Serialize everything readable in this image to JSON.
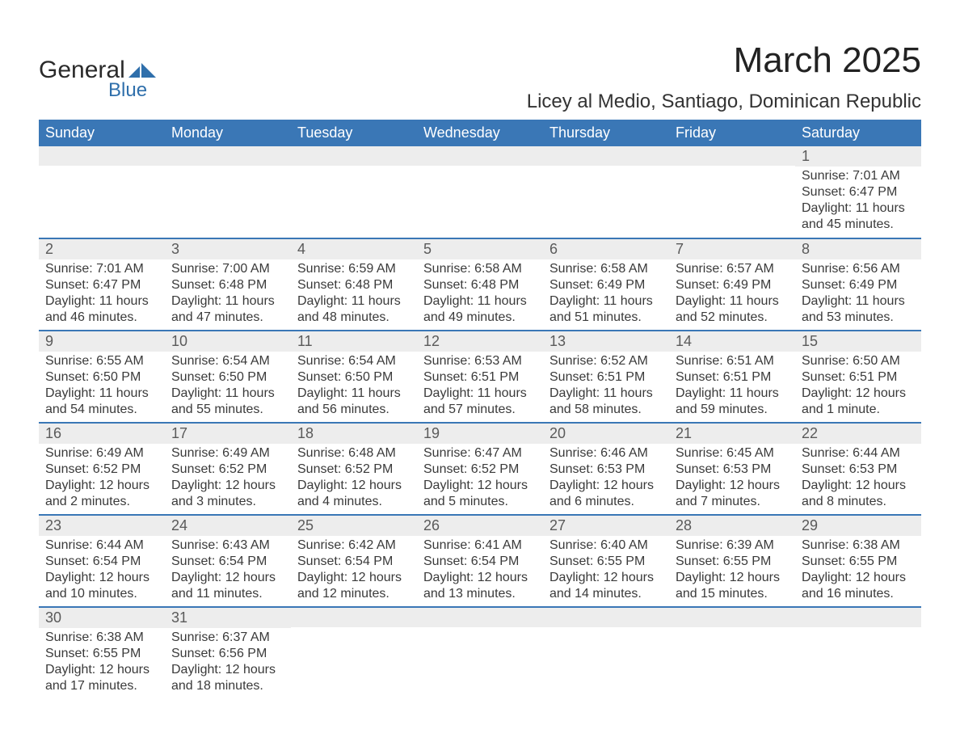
{
  "logo": {
    "text_general": "General",
    "text_blue": "Blue",
    "shape_color": "#2f6fab"
  },
  "title": "March 2025",
  "location": "Licey al Medio, Santiago, Dominican Republic",
  "colors": {
    "header_bg": "#3a77b6",
    "header_text": "#ffffff",
    "daynum_bg": "#ededed",
    "row_divider": "#3a77b6",
    "body_text": "#3a3a3a",
    "title_text": "#222222"
  },
  "typography": {
    "title_fontsize": 44,
    "location_fontsize": 24,
    "dayheader_fontsize": 18,
    "daynum_fontsize": 18,
    "cell_fontsize": 16
  },
  "day_headers": [
    "Sunday",
    "Monday",
    "Tuesday",
    "Wednesday",
    "Thursday",
    "Friday",
    "Saturday"
  ],
  "weeks": [
    [
      null,
      null,
      null,
      null,
      null,
      null,
      {
        "day": "1",
        "sunrise": "Sunrise: 7:01 AM",
        "sunset": "Sunset: 6:47 PM",
        "daylight": "Daylight: 11 hours and 45 minutes."
      }
    ],
    [
      {
        "day": "2",
        "sunrise": "Sunrise: 7:01 AM",
        "sunset": "Sunset: 6:47 PM",
        "daylight": "Daylight: 11 hours and 46 minutes."
      },
      {
        "day": "3",
        "sunrise": "Sunrise: 7:00 AM",
        "sunset": "Sunset: 6:48 PM",
        "daylight": "Daylight: 11 hours and 47 minutes."
      },
      {
        "day": "4",
        "sunrise": "Sunrise: 6:59 AM",
        "sunset": "Sunset: 6:48 PM",
        "daylight": "Daylight: 11 hours and 48 minutes."
      },
      {
        "day": "5",
        "sunrise": "Sunrise: 6:58 AM",
        "sunset": "Sunset: 6:48 PM",
        "daylight": "Daylight: 11 hours and 49 minutes."
      },
      {
        "day": "6",
        "sunrise": "Sunrise: 6:58 AM",
        "sunset": "Sunset: 6:49 PM",
        "daylight": "Daylight: 11 hours and 51 minutes."
      },
      {
        "day": "7",
        "sunrise": "Sunrise: 6:57 AM",
        "sunset": "Sunset: 6:49 PM",
        "daylight": "Daylight: 11 hours and 52 minutes."
      },
      {
        "day": "8",
        "sunrise": "Sunrise: 6:56 AM",
        "sunset": "Sunset: 6:49 PM",
        "daylight": "Daylight: 11 hours and 53 minutes."
      }
    ],
    [
      {
        "day": "9",
        "sunrise": "Sunrise: 6:55 AM",
        "sunset": "Sunset: 6:50 PM",
        "daylight": "Daylight: 11 hours and 54 minutes."
      },
      {
        "day": "10",
        "sunrise": "Sunrise: 6:54 AM",
        "sunset": "Sunset: 6:50 PM",
        "daylight": "Daylight: 11 hours and 55 minutes."
      },
      {
        "day": "11",
        "sunrise": "Sunrise: 6:54 AM",
        "sunset": "Sunset: 6:50 PM",
        "daylight": "Daylight: 11 hours and 56 minutes."
      },
      {
        "day": "12",
        "sunrise": "Sunrise: 6:53 AM",
        "sunset": "Sunset: 6:51 PM",
        "daylight": "Daylight: 11 hours and 57 minutes."
      },
      {
        "day": "13",
        "sunrise": "Sunrise: 6:52 AM",
        "sunset": "Sunset: 6:51 PM",
        "daylight": "Daylight: 11 hours and 58 minutes."
      },
      {
        "day": "14",
        "sunrise": "Sunrise: 6:51 AM",
        "sunset": "Sunset: 6:51 PM",
        "daylight": "Daylight: 11 hours and 59 minutes."
      },
      {
        "day": "15",
        "sunrise": "Sunrise: 6:50 AM",
        "sunset": "Sunset: 6:51 PM",
        "daylight": "Daylight: 12 hours and 1 minute."
      }
    ],
    [
      {
        "day": "16",
        "sunrise": "Sunrise: 6:49 AM",
        "sunset": "Sunset: 6:52 PM",
        "daylight": "Daylight: 12 hours and 2 minutes."
      },
      {
        "day": "17",
        "sunrise": "Sunrise: 6:49 AM",
        "sunset": "Sunset: 6:52 PM",
        "daylight": "Daylight: 12 hours and 3 minutes."
      },
      {
        "day": "18",
        "sunrise": "Sunrise: 6:48 AM",
        "sunset": "Sunset: 6:52 PM",
        "daylight": "Daylight: 12 hours and 4 minutes."
      },
      {
        "day": "19",
        "sunrise": "Sunrise: 6:47 AM",
        "sunset": "Sunset: 6:52 PM",
        "daylight": "Daylight: 12 hours and 5 minutes."
      },
      {
        "day": "20",
        "sunrise": "Sunrise: 6:46 AM",
        "sunset": "Sunset: 6:53 PM",
        "daylight": "Daylight: 12 hours and 6 minutes."
      },
      {
        "day": "21",
        "sunrise": "Sunrise: 6:45 AM",
        "sunset": "Sunset: 6:53 PM",
        "daylight": "Daylight: 12 hours and 7 minutes."
      },
      {
        "day": "22",
        "sunrise": "Sunrise: 6:44 AM",
        "sunset": "Sunset: 6:53 PM",
        "daylight": "Daylight: 12 hours and 8 minutes."
      }
    ],
    [
      {
        "day": "23",
        "sunrise": "Sunrise: 6:44 AM",
        "sunset": "Sunset: 6:54 PM",
        "daylight": "Daylight: 12 hours and 10 minutes."
      },
      {
        "day": "24",
        "sunrise": "Sunrise: 6:43 AM",
        "sunset": "Sunset: 6:54 PM",
        "daylight": "Daylight: 12 hours and 11 minutes."
      },
      {
        "day": "25",
        "sunrise": "Sunrise: 6:42 AM",
        "sunset": "Sunset: 6:54 PM",
        "daylight": "Daylight: 12 hours and 12 minutes."
      },
      {
        "day": "26",
        "sunrise": "Sunrise: 6:41 AM",
        "sunset": "Sunset: 6:54 PM",
        "daylight": "Daylight: 12 hours and 13 minutes."
      },
      {
        "day": "27",
        "sunrise": "Sunrise: 6:40 AM",
        "sunset": "Sunset: 6:55 PM",
        "daylight": "Daylight: 12 hours and 14 minutes."
      },
      {
        "day": "28",
        "sunrise": "Sunrise: 6:39 AM",
        "sunset": "Sunset: 6:55 PM",
        "daylight": "Daylight: 12 hours and 15 minutes."
      },
      {
        "day": "29",
        "sunrise": "Sunrise: 6:38 AM",
        "sunset": "Sunset: 6:55 PM",
        "daylight": "Daylight: 12 hours and 16 minutes."
      }
    ],
    [
      {
        "day": "30",
        "sunrise": "Sunrise: 6:38 AM",
        "sunset": "Sunset: 6:55 PM",
        "daylight": "Daylight: 12 hours and 17 minutes."
      },
      {
        "day": "31",
        "sunrise": "Sunrise: 6:37 AM",
        "sunset": "Sunset: 6:56 PM",
        "daylight": "Daylight: 12 hours and 18 minutes."
      },
      null,
      null,
      null,
      null,
      null
    ]
  ]
}
